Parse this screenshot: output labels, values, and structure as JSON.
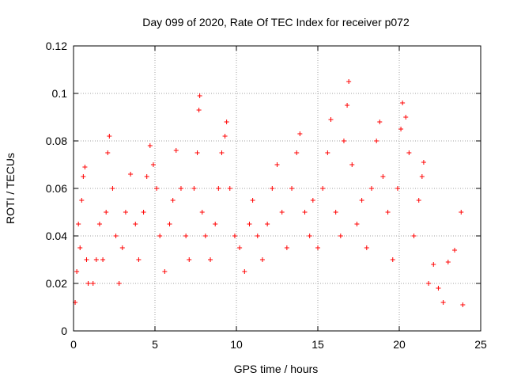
{
  "chart_data": {
    "type": "scatter",
    "title": "Day 099 of 2020, Rate Of TEC Index for receiver p072",
    "xlabel": "GPS time / hours",
    "ylabel": "ROTI / TECUs",
    "xlim": [
      0,
      24
    ],
    "ylim": [
      0,
      0.12
    ],
    "xticks": [
      0,
      5,
      10,
      15,
      20,
      25
    ],
    "yticks": [
      0,
      0.02,
      0.04,
      0.06,
      0.08,
      0.1,
      0.12
    ],
    "xtick_labels": [
      "0",
      "5",
      "10",
      "15",
      "20",
      "25"
    ],
    "ytick_labels": [
      "0",
      "0.02",
      "0.04",
      "0.06",
      "0.08",
      "0.1",
      "0.12"
    ],
    "grid": true,
    "marker": "plus",
    "marker_color": "#ff0000",
    "series": [
      {
        "points": [
          [
            0.1,
            0.012
          ],
          [
            0.2,
            0.025
          ],
          [
            0.3,
            0.045
          ],
          [
            0.4,
            0.035
          ],
          [
            0.5,
            0.055
          ],
          [
            0.6,
            0.065
          ],
          [
            0.7,
            0.069
          ],
          [
            0.8,
            0.03
          ],
          [
            0.9,
            0.02
          ],
          [
            1.2,
            0.02
          ],
          [
            1.4,
            0.03
          ],
          [
            1.6,
            0.045
          ],
          [
            1.8,
            0.03
          ],
          [
            2.0,
            0.05
          ],
          [
            2.1,
            0.075
          ],
          [
            2.2,
            0.082
          ],
          [
            2.4,
            0.06
          ],
          [
            2.6,
            0.04
          ],
          [
            2.8,
            0.02
          ],
          [
            3.0,
            0.035
          ],
          [
            3.2,
            0.05
          ],
          [
            3.5,
            0.066
          ],
          [
            3.8,
            0.045
          ],
          [
            4.0,
            0.03
          ],
          [
            4.3,
            0.05
          ],
          [
            4.5,
            0.065
          ],
          [
            4.7,
            0.078
          ],
          [
            4.9,
            0.07
          ],
          [
            5.1,
            0.06
          ],
          [
            5.3,
            0.04
          ],
          [
            5.6,
            0.025
          ],
          [
            5.9,
            0.045
          ],
          [
            6.1,
            0.055
          ],
          [
            6.3,
            0.076
          ],
          [
            6.6,
            0.06
          ],
          [
            6.9,
            0.04
          ],
          [
            7.1,
            0.03
          ],
          [
            7.4,
            0.06
          ],
          [
            7.6,
            0.075
          ],
          [
            7.7,
            0.093
          ],
          [
            7.75,
            0.099
          ],
          [
            7.9,
            0.05
          ],
          [
            8.1,
            0.04
          ],
          [
            8.4,
            0.03
          ],
          [
            8.7,
            0.045
          ],
          [
            8.9,
            0.06
          ],
          [
            9.1,
            0.075
          ],
          [
            9.3,
            0.082
          ],
          [
            9.4,
            0.088
          ],
          [
            9.6,
            0.06
          ],
          [
            9.9,
            0.04
          ],
          [
            10.2,
            0.035
          ],
          [
            10.5,
            0.025
          ],
          [
            10.8,
            0.045
          ],
          [
            11.0,
            0.055
          ],
          [
            11.3,
            0.04
          ],
          [
            11.6,
            0.03
          ],
          [
            11.9,
            0.045
          ],
          [
            12.2,
            0.06
          ],
          [
            12.5,
            0.07
          ],
          [
            12.8,
            0.05
          ],
          [
            13.1,
            0.035
          ],
          [
            13.4,
            0.06
          ],
          [
            13.7,
            0.075
          ],
          [
            13.9,
            0.083
          ],
          [
            14.2,
            0.05
          ],
          [
            14.5,
            0.04
          ],
          [
            14.7,
            0.055
          ],
          [
            15.0,
            0.035
          ],
          [
            15.3,
            0.06
          ],
          [
            15.6,
            0.075
          ],
          [
            15.8,
            0.089
          ],
          [
            16.1,
            0.05
          ],
          [
            16.4,
            0.04
          ],
          [
            16.6,
            0.08
          ],
          [
            16.8,
            0.095
          ],
          [
            16.9,
            0.105
          ],
          [
            17.1,
            0.07
          ],
          [
            17.4,
            0.045
          ],
          [
            17.7,
            0.055
          ],
          [
            18.0,
            0.035
          ],
          [
            18.3,
            0.06
          ],
          [
            18.6,
            0.08
          ],
          [
            18.8,
            0.088
          ],
          [
            19.0,
            0.065
          ],
          [
            19.3,
            0.05
          ],
          [
            19.6,
            0.03
          ],
          [
            19.9,
            0.06
          ],
          [
            20.1,
            0.085
          ],
          [
            20.2,
            0.096
          ],
          [
            20.4,
            0.09
          ],
          [
            20.6,
            0.075
          ],
          [
            20.9,
            0.04
          ],
          [
            21.2,
            0.055
          ],
          [
            21.4,
            0.065
          ],
          [
            21.5,
            0.071
          ],
          [
            21.8,
            0.02
          ],
          [
            22.1,
            0.028
          ],
          [
            22.4,
            0.018
          ],
          [
            22.7,
            0.012
          ],
          [
            23.0,
            0.029
          ],
          [
            23.4,
            0.034
          ],
          [
            23.8,
            0.05
          ],
          [
            23.9,
            0.011
          ]
        ]
      }
    ]
  }
}
